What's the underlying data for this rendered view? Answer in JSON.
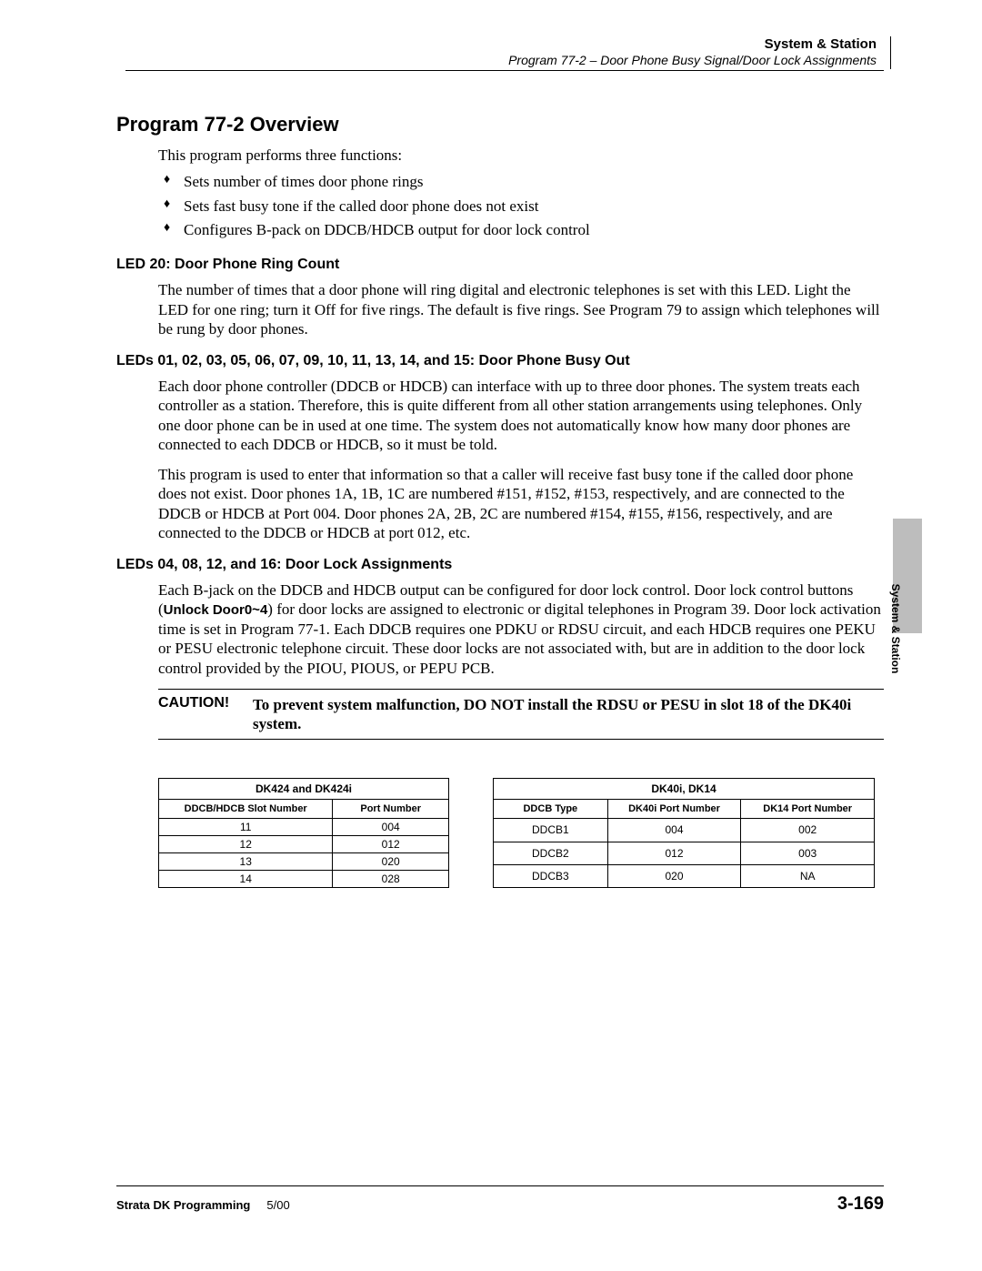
{
  "header": {
    "section": "System & Station",
    "subtitle": "Program 77-2 – Door Phone Busy Signal/Door Lock Assignments"
  },
  "title": "Program 77-2 Overview",
  "intro": "This program performs three functions:",
  "bullets": [
    "Sets number of times door phone rings",
    "Sets fast busy tone if the called door phone does not exist",
    "Configures B-pack on DDCB/HDCB output for door lock control"
  ],
  "sections": [
    {
      "heading": "LED 20: Door Phone Ring Count",
      "paragraphs": [
        "The number of times that a door phone will ring digital and electronic telephones is set with this LED. Light the LED for one ring; turn it Off for five rings. The default is five rings. See Program 79 to assign which telephones will be rung by door phones."
      ]
    },
    {
      "heading": "LEDs 01, 02, 03, 05, 06, 07, 09, 10, 11, 13, 14, and 15: Door Phone Busy Out",
      "paragraphs": [
        "Each door phone controller (DDCB or HDCB) can interface with up to three door phones. The system treats each controller as a station. Therefore, this is quite different from all other station arrangements using telephones. Only one door phone can be in used at one time. The system does not automatically know how many door phones are connected to each DDCB or HDCB, so it must be told.",
        "This program is used to enter that information so that a caller will receive fast busy tone if the called door phone does not exist. Door phones 1A, 1B, 1C are numbered #151, #152, #153, respectively, and are connected to the DDCB or HDCB at Port 004. Door phones 2A, 2B, 2C are numbered #154, #155, #156, respectively, and are connected to the DDCB or HDCB at port 012, etc."
      ]
    },
    {
      "heading": "LEDs 04, 08, 12, and 16: Door Lock Assignments",
      "paragraphs": []
    }
  ],
  "lockPara": {
    "pre": "Each B-jack on the DDCB and HDCB output can be configured for door lock control. Door lock control buttons (",
    "boldSans": "Unlock Door0~4",
    "post": ") for door locks are assigned to electronic or digital telephones in Program 39. Door lock activation time is set in Program 77-1. Each DDCB requires one PDKU or RDSU circuit, and each HDCB requires one PEKU or PESU electronic telephone circuit. These door locks are not associated with, but are in addition to the door lock control provided by the PIOU, PIOUS, or PEPU PCB."
  },
  "caution": {
    "label": "CAUTION!",
    "text": "To prevent system malfunction, DO NOT install the RDSU or PESU in slot 18 of the DK40i system."
  },
  "table1": {
    "title": "DK424 and DK424i",
    "columns": [
      "DDCB/HDCB Slot Number",
      "Port Number"
    ],
    "rows": [
      [
        "11",
        "004"
      ],
      [
        "12",
        "012"
      ],
      [
        "13",
        "020"
      ],
      [
        "14",
        "028"
      ]
    ],
    "colWidths": [
      "60%",
      "40%"
    ]
  },
  "table2": {
    "title": "DK40i, DK14",
    "columns": [
      "DDCB Type",
      "DK40i Port Number",
      "DK14 Port Number"
    ],
    "rows": [
      [
        "DDCB1",
        "004",
        "002"
      ],
      [
        "DDCB2",
        "012",
        "003"
      ],
      [
        "DDCB3",
        "020",
        "NA"
      ]
    ],
    "colWidths": [
      "30%",
      "35%",
      "35%"
    ]
  },
  "sideTab": "System & Station",
  "footer": {
    "left": "Strata DK Programming",
    "date": "5/00",
    "right": "3-169"
  },
  "colors": {
    "background": "#ffffff",
    "text": "#000000",
    "sideTab": "#bdbdbd",
    "rule": "#000000"
  },
  "typography": {
    "bodyFont": "Times New Roman",
    "headingFont": "Arial",
    "h1Size": 22,
    "h2Size": 16,
    "bodySize": 17,
    "tableSize": 12
  }
}
